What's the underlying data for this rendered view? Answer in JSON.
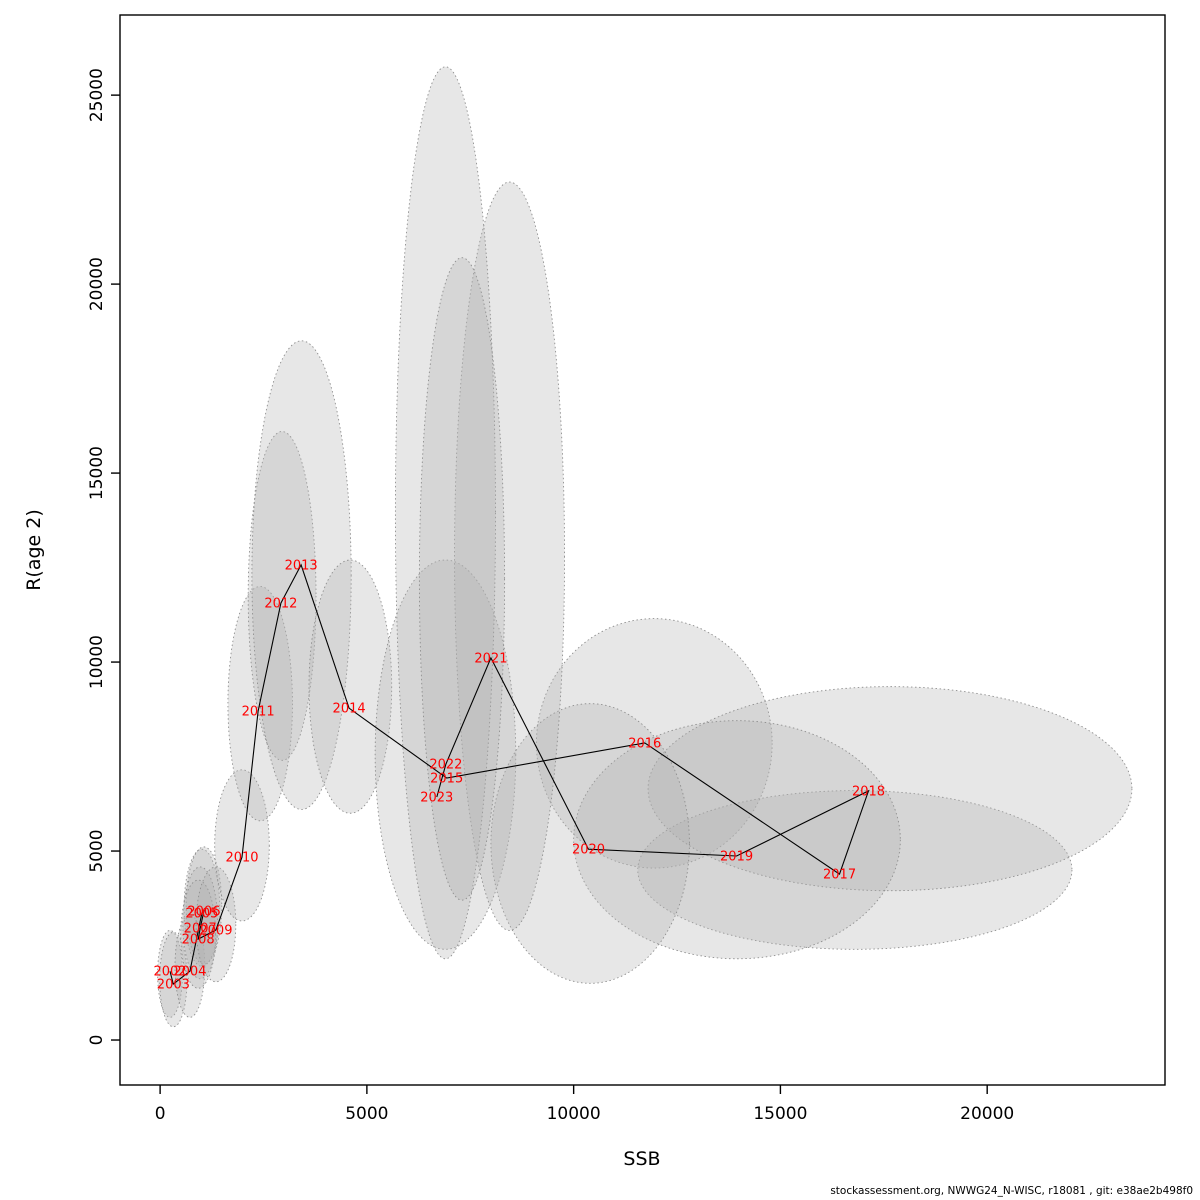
{
  "page": {
    "footer": "stockassessment.org, NWWG24_N-WISC, r18081 , git: e38ae2b498f0"
  },
  "chart_data": {
    "type": "scatter",
    "title": "",
    "xlabel": "SSB",
    "ylabel": "R(age 2)",
    "xlim": [
      -970,
      24300
    ],
    "ylim": [
      -1190,
      27120
    ],
    "x_ticks": [
      0,
      5000,
      10000,
      15000,
      20000
    ],
    "y_ticks": [
      0,
      5000,
      10000,
      15000,
      20000,
      25000
    ],
    "grid": false,
    "legend_position": "none",
    "line_color": "#000000",
    "point_label_color": "#FF0000",
    "ellipse_fill": "#B0B0B0",
    "ellipse_fill_opacity": 0.3,
    "ellipse_stroke": "#8F8F8F",
    "points": [
      {
        "year": "2002",
        "ssb": 240,
        "rec": 1820,
        "ellipse": {
          "cx": 240,
          "cy": 1750,
          "rx": 300,
          "ry": 1150
        }
      },
      {
        "year": "2003",
        "ssb": 320,
        "rec": 1480,
        "ellipse": {
          "cx": 320,
          "cy": 1600,
          "rx": 330,
          "ry": 1250
        }
      },
      {
        "year": "2004",
        "ssb": 720,
        "rec": 1820,
        "ellipse": {
          "cx": 720,
          "cy": 1950,
          "rx": 360,
          "ry": 1350
        }
      },
      {
        "year": "2005",
        "ssb": 1010,
        "rec": 3360,
        "ellipse": {
          "cx": 1010,
          "cy": 3500,
          "rx": 430,
          "ry": 1550
        }
      },
      {
        "year": "2006",
        "ssb": 1060,
        "rec": 3410,
        "ellipse": {
          "cx": 1060,
          "cy": 3560,
          "rx": 430,
          "ry": 1550
        }
      },
      {
        "year": "2007",
        "ssb": 970,
        "rec": 2960,
        "ellipse": {
          "cx": 970,
          "cy": 3100,
          "rx": 420,
          "ry": 1480
        }
      },
      {
        "year": "2008",
        "ssb": 920,
        "rec": 2670,
        "ellipse": {
          "cx": 920,
          "cy": 2800,
          "rx": 420,
          "ry": 1430
        }
      },
      {
        "year": "2009",
        "ssb": 1350,
        "rec": 2910,
        "ellipse": {
          "cx": 1350,
          "cy": 3060,
          "rx": 480,
          "ry": 1520
        }
      },
      {
        "year": "2010",
        "ssb": 1980,
        "rec": 4840,
        "ellipse": {
          "cx": 1980,
          "cy": 5150,
          "rx": 660,
          "ry": 2000
        }
      },
      {
        "year": "2011",
        "ssb": 2370,
        "rec": 8700,
        "ellipse": {
          "cx": 2420,
          "cy": 8900,
          "rx": 780,
          "ry": 3100
        }
      },
      {
        "year": "2012",
        "ssb": 2920,
        "rec": 11560,
        "ellipse": {
          "cx": 2950,
          "cy": 11750,
          "rx": 820,
          "ry": 4350
        }
      },
      {
        "year": "2013",
        "ssb": 3410,
        "rec": 12570,
        "ellipse": {
          "cx": 3420,
          "cy": 12300,
          "rx": 1200,
          "ry": 6200
        }
      },
      {
        "year": "2014",
        "ssb": 4570,
        "rec": 8780,
        "ellipse": {
          "cx": 4600,
          "cy": 9350,
          "rx": 1000,
          "ry": 3350
        }
      },
      {
        "year": "2015",
        "ssb": 6930,
        "rec": 6930,
        "ellipse": {
          "cx": 6900,
          "cy": 7550,
          "rx": 1700,
          "ry": 5150
        }
      },
      {
        "year": "2016",
        "ssb": 11720,
        "rec": 7860,
        "ellipse": {
          "cx": 11950,
          "cy": 7850,
          "rx": 2850,
          "ry": 3300
        }
      },
      {
        "year": "2017",
        "ssb": 16430,
        "rec": 4390,
        "ellipse": {
          "cx": 16800,
          "cy": 4500,
          "rx": 5250,
          "ry": 2100
        }
      },
      {
        "year": "2018",
        "ssb": 17130,
        "rec": 6590,
        "ellipse": {
          "cx": 17650,
          "cy": 6650,
          "rx": 5850,
          "ry": 2700
        }
      },
      {
        "year": "2019",
        "ssb": 13940,
        "rec": 4870,
        "ellipse": {
          "cx": 13950,
          "cy": 5300,
          "rx": 3950,
          "ry": 3150
        }
      },
      {
        "year": "2020",
        "ssb": 10360,
        "rec": 5050,
        "ellipse": {
          "cx": 10400,
          "cy": 5200,
          "rx": 2400,
          "ry": 3700
        }
      },
      {
        "year": "2021",
        "ssb": 8000,
        "rec": 10110,
        "ellipse": {
          "cx": 8450,
          "cy": 12800,
          "rx": 1330,
          "ry": 9900
        }
      },
      {
        "year": "2022",
        "ssb": 6910,
        "rec": 7300,
        "ellipse": {
          "cx": 6900,
          "cy": 13950,
          "rx": 1210,
          "ry": 11800
        }
      },
      {
        "year": "2023",
        "ssb": 6690,
        "rec": 6430,
        "ellipse": {
          "cx": 7300,
          "cy": 12200,
          "rx": 1030,
          "ry": 8500
        }
      }
    ]
  }
}
